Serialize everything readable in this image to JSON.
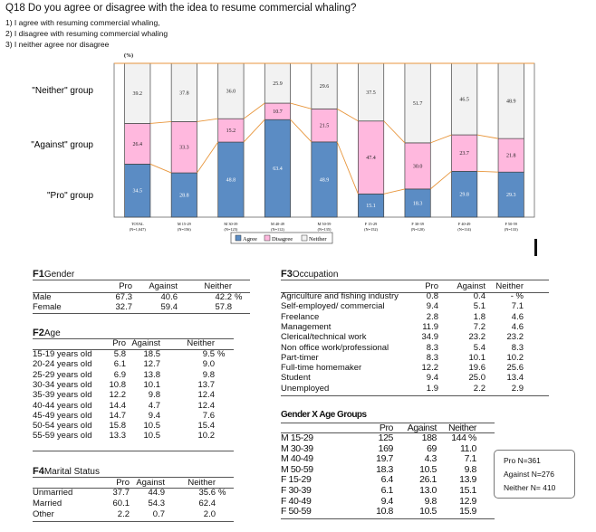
{
  "question": {
    "title": "Q18 Do you agree or disagree with the idea to resume commercial whaling?",
    "options": [
      "1) I agree with resuming commercial whaling,",
      "2) I disagree with resuming commercial whaling",
      "3) I neither agree nor disagree"
    ]
  },
  "chart_data": {
    "type": "bar",
    "stacked": true,
    "unit_label": "(%)",
    "categories": [
      "TOTAL",
      "M 15-29",
      "M 30-39",
      "M 40-49",
      "M 50-59",
      "F 15-29",
      "F 30-39",
      "F 40-49",
      "F 50-59"
    ],
    "category_n": [
      "(N=1,047)",
      "(N=156)",
      "(N=125)",
      "(N=112)",
      "(N=135)",
      "(N=152)",
      "(N=120)",
      "(N=114)",
      "(N=133)"
    ],
    "series": [
      {
        "name": "Agree",
        "color": "#5b8cc4",
        "values": [
          34.5,
          28.8,
          48.8,
          63.4,
          48.9,
          15.1,
          18.3,
          29.8,
          29.3
        ]
      },
      {
        "name": "Disagree",
        "color": "#ffb8de",
        "values": [
          26.4,
          33.3,
          15.2,
          10.7,
          21.5,
          47.4,
          30.0,
          23.7,
          21.8
        ]
      },
      {
        "name": "Neither",
        "color": "#f2f2f2",
        "values": [
          39.2,
          37.8,
          36.0,
          25.9,
          29.6,
          37.5,
          51.7,
          46.5,
          48.9
        ]
      }
    ],
    "group_labels": [
      "\"Neither\" group",
      "\"Against\" group",
      "\"Pro\" group"
    ],
    "legend_position": "bottom",
    "ylim": [
      0,
      100
    ]
  },
  "gender": {
    "title": "Gender",
    "code": "F1",
    "headers": [
      "Pro",
      "Against",
      "Neither"
    ],
    "rows": [
      {
        "label": "Male",
        "pro": "67.3",
        "against": "40.6",
        "neither": "42.2",
        "unit": "%"
      },
      {
        "label": "Female",
        "pro": "32.7",
        "against": "59.4",
        "neither": "57.8",
        "unit": ""
      }
    ]
  },
  "age": {
    "title": "Age",
    "code": "F2",
    "headers": [
      "Pro",
      "Against",
      "Neither"
    ],
    "rows": [
      {
        "label": "15-19 years old",
        "pro": "5.8",
        "against": "18.5",
        "neither": "9.5",
        "unit": "%"
      },
      {
        "label": "20-24 years old",
        "pro": "6.1",
        "against": "12.7",
        "neither": "9.0",
        "unit": ""
      },
      {
        "label": "25-29 years old",
        "pro": "6.9",
        "against": "13.8",
        "neither": "9.8",
        "unit": ""
      },
      {
        "label": "30-34 years old",
        "pro": "10.8",
        "against": "10.1",
        "neither": "13.7",
        "unit": ""
      },
      {
        "label": "35-39 years old",
        "pro": "12.2",
        "against": "9.8",
        "neither": "12.4",
        "unit": ""
      },
      {
        "label": "40-44 years old",
        "pro": "14.4",
        "against": "4.7",
        "neither": "12.4",
        "unit": ""
      },
      {
        "label": "45-49 years old",
        "pro": "14.7",
        "against": "9.4",
        "neither": "7.6",
        "unit": ""
      },
      {
        "label": "50-54 years old",
        "pro": "15.8",
        "against": "10.5",
        "neither": "15.4",
        "unit": ""
      },
      {
        "label": "55-59 years old",
        "pro": "13.3",
        "against": "10.5",
        "neither": "10.2",
        "unit": ""
      }
    ]
  },
  "marital": {
    "title": "Marital Status",
    "code": "F4",
    "headers": [
      "Pro",
      "Against",
      "Neither"
    ],
    "rows": [
      {
        "label": "Unmarried",
        "pro": "37.7",
        "against": "44.9",
        "neither": "35.6",
        "unit": "%"
      },
      {
        "label": "Married",
        "pro": "60.1",
        "against": "54.3",
        "neither": "62.4",
        "unit": ""
      },
      {
        "label": "Other",
        "pro": "2.2",
        "against": "0.7",
        "neither": "2.0",
        "unit": ""
      }
    ]
  },
  "occupation": {
    "title": "Occupation",
    "code": "F3",
    "headers": [
      "Pro",
      "Against",
      "Neither"
    ],
    "rows": [
      {
        "label": "Agriculture and fishing industry",
        "pro": "0.8",
        "against": "0.4",
        "neither": "- %"
      },
      {
        "label": "Self-employed/ commercial",
        "pro": "9.4",
        "against": "5.1",
        "neither": "7.1"
      },
      {
        "label": "Freelance",
        "pro": "2.8",
        "against": "1.8",
        "neither": "4.6"
      },
      {
        "label": "Management",
        "pro": "11.9",
        "against": "7.2",
        "neither": "4.6"
      },
      {
        "label": "Clerical/technical work",
        "pro": "34.9",
        "against": "23.2",
        "neither": "23.2"
      },
      {
        "label": "Non office work/professional",
        "pro": "8.3",
        "against": "5.4",
        "neither": "8.3"
      },
      {
        "label": "Part-timer",
        "pro": "8.3",
        "against": "10.1",
        "neither": "10.2"
      },
      {
        "label": "Full-time homemaker",
        "pro": "12.2",
        "against": "19.6",
        "neither": "25.6"
      },
      {
        "label": "Student",
        "pro": "9.4",
        "against": "25.0",
        "neither": "13.4"
      },
      {
        "label": "Unemployed",
        "pro": "1.9",
        "against": "2.2",
        "neither": "2.9"
      }
    ]
  },
  "gender_age": {
    "title": "Gender X Age Groups",
    "headers": [
      "Pro",
      "Against",
      "Neither"
    ],
    "rows": [
      {
        "label": "M 15-29",
        "pro": "125",
        "against": "188",
        "neither": "144 %"
      },
      {
        "label": "M 30-39",
        "pro": "169",
        "against": "69",
        "neither": "11.0"
      },
      {
        "label": "M 40-49",
        "pro": "19.7",
        "against": "4.3",
        "neither": "7.1"
      },
      {
        "label": "M 50-59",
        "pro": "18.3",
        "against": "10.5",
        "neither": "9.8"
      },
      {
        "label": "F 15-29",
        "pro": "6.4",
        "against": "26.1",
        "neither": "13.9"
      },
      {
        "label": "F 30-39",
        "pro": "6.1",
        "against": "13.0",
        "neither": "15.1"
      },
      {
        "label": "F 40-49",
        "pro": "9.4",
        "against": "9.8",
        "neither": "12.9"
      },
      {
        "label": "F 50-59",
        "pro": "10.8",
        "against": "10.5",
        "neither": "15.9"
      }
    ]
  },
  "sample_sizes": [
    "Pro N=361",
    "Against N=276",
    "Neither N= 410"
  ]
}
